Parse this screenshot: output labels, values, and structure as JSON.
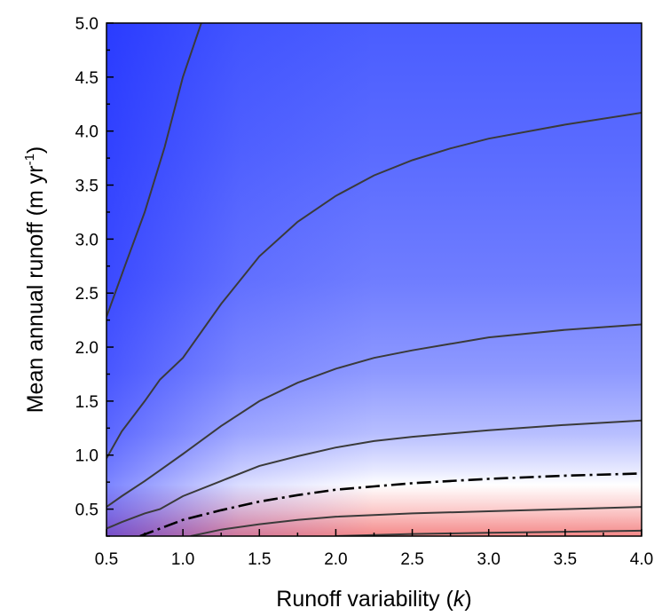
{
  "chart_data": {
    "type": "contour",
    "xlabel_prefix": "Runoff variability (",
    "xlabel_symbol": "k",
    "xlabel_suffix": ")",
    "ylabel_prefix": "Mean annual runoff (m yr",
    "ylabel_sup": "-1",
    "ylabel_suffix": ")",
    "xlim": [
      0.5,
      4.0
    ],
    "ylim": [
      0.25,
      5.0
    ],
    "xticks": [
      "0.5",
      "1.0",
      "1.5",
      "2.0",
      "2.5",
      "3.0",
      "3.5",
      "4.0"
    ],
    "yticks": [
      "0.5",
      "1.0",
      "1.5",
      "2.0",
      "2.5",
      "3.0",
      "3.5",
      "4.0",
      "4.5",
      "5.0"
    ],
    "colormap": {
      "high": "#1a2bff",
      "mid": "#ffffff",
      "low": "#f07575"
    },
    "contours": [
      {
        "style": "solid",
        "x": [
          0.5,
          0.62,
          0.75,
          0.88,
          1.0,
          1.12
        ],
        "y": [
          2.28,
          2.75,
          3.25,
          3.85,
          4.5,
          5.0
        ]
      },
      {
        "style": "solid",
        "x": [
          0.5,
          0.6,
          0.75,
          0.85,
          1.0,
          1.25,
          1.5,
          1.75,
          2.0,
          2.25,
          2.5,
          2.75,
          3.0,
          3.5,
          4.0
        ],
        "y": [
          0.97,
          1.22,
          1.5,
          1.7,
          1.9,
          2.4,
          2.84,
          3.16,
          3.4,
          3.59,
          3.73,
          3.84,
          3.93,
          4.06,
          4.17
        ]
      },
      {
        "style": "solid",
        "x": [
          0.5,
          0.6,
          0.75,
          0.85,
          1.0,
          1.25,
          1.5,
          1.75,
          2.0,
          2.25,
          2.5,
          2.75,
          3.0,
          3.5,
          4.0
        ],
        "y": [
          0.52,
          0.62,
          0.76,
          0.86,
          1.01,
          1.27,
          1.5,
          1.67,
          1.8,
          1.9,
          1.97,
          2.03,
          2.09,
          2.16,
          2.21
        ]
      },
      {
        "style": "solid",
        "x": [
          0.5,
          0.6,
          0.75,
          0.85,
          1.0,
          1.25,
          1.5,
          1.75,
          2.0,
          2.25,
          2.5,
          2.75,
          3.0,
          3.5,
          4.0
        ],
        "y": [
          0.32,
          0.38,
          0.46,
          0.5,
          0.62,
          0.76,
          0.9,
          0.99,
          1.07,
          1.13,
          1.17,
          1.2,
          1.23,
          1.28,
          1.32
        ]
      },
      {
        "style": "dashdot",
        "x": [
          0.72,
          0.85,
          1.0,
          1.25,
          1.5,
          1.75,
          2.0,
          2.25,
          2.5,
          2.75,
          3.0,
          3.5,
          4.0
        ],
        "y": [
          0.25,
          0.32,
          0.4,
          0.49,
          0.57,
          0.63,
          0.68,
          0.71,
          0.74,
          0.76,
          0.78,
          0.81,
          0.83
        ]
      },
      {
        "style": "solid",
        "x": [
          1.05,
          1.25,
          1.5,
          1.75,
          2.0,
          2.5,
          3.0,
          3.5,
          4.0
        ],
        "y": [
          0.25,
          0.31,
          0.36,
          0.4,
          0.43,
          0.46,
          0.48,
          0.5,
          0.52
        ]
      },
      {
        "style": "solid",
        "x": [
          2.0,
          2.5,
          3.0,
          3.5,
          4.0
        ],
        "y": [
          0.25,
          0.27,
          0.28,
          0.29,
          0.3
        ]
      }
    ]
  }
}
